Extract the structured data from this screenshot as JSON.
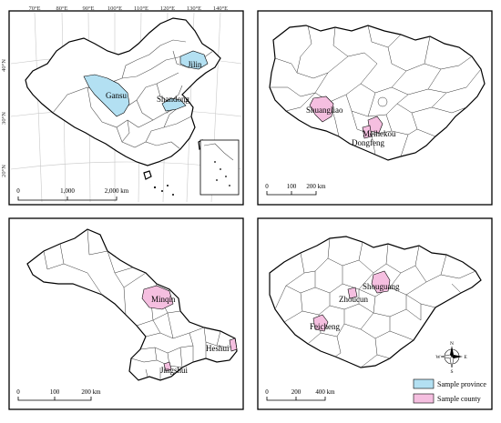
{
  "colors": {
    "sample_province": "#b3e0f2",
    "sample_county": "#f5bfe0",
    "frame": "#000000"
  },
  "map_china": {
    "lon_ticks": [
      "70°E",
      "80°E",
      "90°E",
      "100°E",
      "110°E",
      "120°E",
      "130°E",
      "140°E"
    ],
    "lat_ticks": [
      "40°N",
      "30°N",
      "20°N"
    ],
    "provinces": [
      "Jilin",
      "Gansu",
      "Shandong"
    ],
    "scalebar": [
      "0",
      "1,000",
      "2,000 km"
    ]
  },
  "map_jilin": {
    "counties": [
      "Shuangliao",
      "Meihekou",
      "Dongfeng"
    ],
    "scalebar": [
      "0",
      "100",
      "200 km"
    ]
  },
  "map_gansu": {
    "counties": [
      "Minqin",
      "Heshui",
      "Jingshui"
    ],
    "scalebar": [
      "0",
      "100",
      "200 km"
    ]
  },
  "map_shandong": {
    "counties": [
      "Shouguang",
      "Zhoucun",
      "Feicheng"
    ],
    "scalebar": [
      "0",
      "200",
      "400 km"
    ],
    "compass": [
      "N",
      "S",
      "E",
      "W"
    ]
  },
  "legend": {
    "items": [
      "Sample province",
      "Sample county"
    ]
  }
}
